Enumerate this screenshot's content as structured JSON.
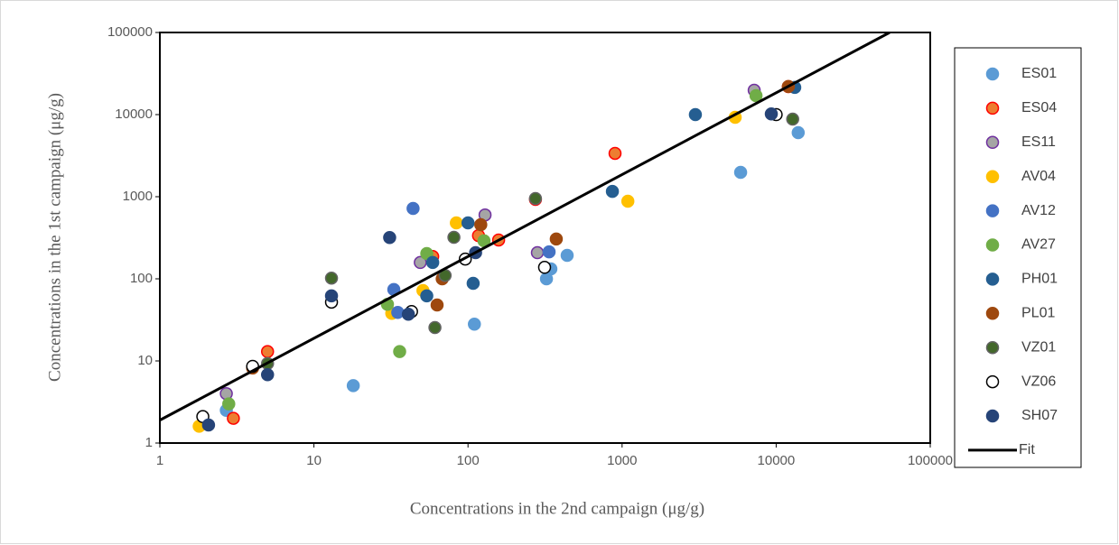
{
  "chart_data": {
    "type": "scatter",
    "log_x": true,
    "log_y": true,
    "xlabel": "Concentrations in the 2nd campaign (μg/g)",
    "ylabel": "Concentrations in the 1st campaign (μg/g)",
    "xlim": [
      1,
      100000
    ],
    "ylim": [
      1,
      100000
    ],
    "xticks": [
      1,
      10,
      100,
      1000,
      10000,
      100000
    ],
    "yticks": [
      1,
      10,
      100,
      1000,
      10000,
      100000
    ],
    "legend": "right",
    "series": [
      {
        "name": "ES01",
        "color": "#5B9BD5",
        "edgecolor": "#5B9BD5",
        "x": [
          2.7,
          18,
          110,
          323,
          345,
          440,
          5880,
          13900
        ],
        "values": [
          2.5,
          5,
          28,
          100,
          132,
          193,
          1980,
          6030
        ]
      },
      {
        "name": "ES04",
        "color": "#ED7D31",
        "edgecolor": "#FF0000",
        "x": [
          3,
          5,
          59,
          117,
          158,
          274,
          900,
          12000
        ],
        "values": [
          2,
          13,
          187,
          336,
          297,
          926,
          3370,
          21900
        ]
      },
      {
        "name": "ES11",
        "color": "#A5A5A5",
        "edgecolor": "#7030A0",
        "x": [
          2.7,
          49,
          129,
          282,
          7200
        ],
        "values": [
          4,
          158,
          600,
          208,
          19800
        ]
      },
      {
        "name": "AV04",
        "color": "#FFC000",
        "edgecolor": "#FFC000",
        "x": [
          1.8,
          32,
          51,
          84,
          1090,
          5420
        ],
        "values": [
          1.6,
          38,
          72,
          480,
          880,
          9270
        ]
      },
      {
        "name": "AV12",
        "color": "#4472C4",
        "edgecolor": "#4472C4",
        "x": [
          44,
          33,
          35,
          336
        ],
        "values": [
          720,
          74,
          39,
          213
        ]
      },
      {
        "name": "AV27",
        "color": "#70AD47",
        "edgecolor": "#70AD47",
        "x": [
          2.8,
          30,
          36,
          54,
          127,
          7400
        ],
        "values": [
          3,
          49,
          13,
          203,
          290,
          17000
        ]
      },
      {
        "name": "PH01",
        "color": "#255E91",
        "edgecolor": "#255E91",
        "x": [
          100,
          54,
          59,
          108,
          865,
          2990,
          13200
        ],
        "values": [
          480,
          62,
          158,
          88,
          1160,
          10000,
          21400
        ]
      },
      {
        "name": "PL01",
        "color": "#9E480E",
        "edgecolor": "#9E480E",
        "x": [
          4,
          68,
          63,
          121,
          374,
          12000
        ],
        "values": [
          8.2,
          100,
          48,
          456,
          305,
          22000
        ]
      },
      {
        "name": "VZ01",
        "color": "#43682B",
        "edgecolor": "#636363",
        "x": [
          5,
          13,
          61,
          71,
          81,
          274,
          12800
        ],
        "values": [
          9.3,
          102,
          25.5,
          110,
          320,
          950,
          8800
        ]
      },
      {
        "name": "VZ06",
        "color": "#FFFFFF",
        "edgecolor": "#000000",
        "x": [
          1.9,
          4,
          13,
          43,
          96,
          314,
          10000
        ],
        "values": [
          2.1,
          8.6,
          52,
          40,
          174,
          138,
          10000
        ]
      },
      {
        "name": "SH07",
        "color": "#264478",
        "edgecolor": "#264478",
        "x": [
          2.07,
          5,
          13,
          31,
          41,
          112,
          9300
        ],
        "values": [
          1.66,
          6.8,
          62,
          318,
          37,
          208,
          10200
        ]
      },
      {
        "name": "Fit",
        "type": "line",
        "color": "#000000",
        "x": [
          1,
          54500
        ],
        "values": [
          1.9,
          100000
        ]
      }
    ]
  }
}
